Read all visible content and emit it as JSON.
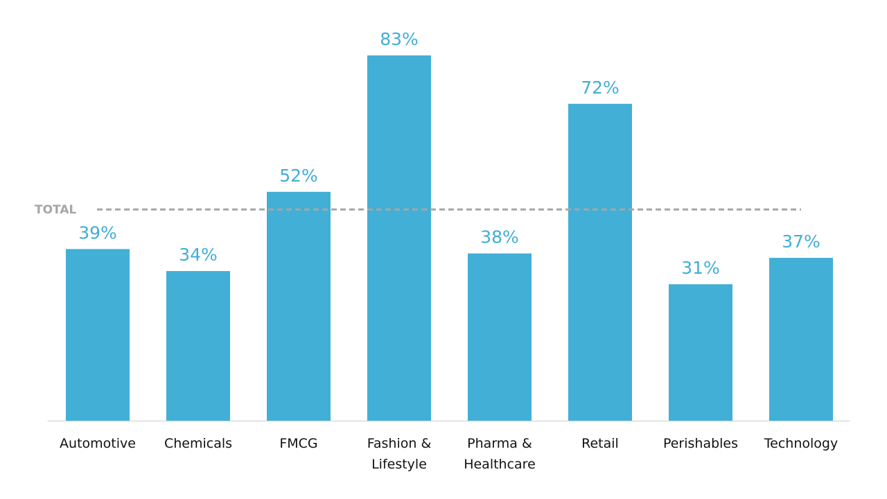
{
  "chart_data": {
    "type": "bar",
    "categories": [
      "Automotive",
      "Chemicals",
      "FMCG",
      "Fashion & Lifestyle",
      "Pharma & Healthcare",
      "Retail",
      "Perishables",
      "Technology"
    ],
    "values": [
      39,
      34,
      52,
      83,
      38,
      72,
      31,
      37
    ],
    "value_labels": [
      "39%",
      "34%",
      "52%",
      "83%",
      "38%",
      "72%",
      "31%",
      "37%"
    ],
    "color": "#42afd6",
    "ylim": [
      0,
      90
    ],
    "reference_line": {
      "label": "TOTAL",
      "value": 48,
      "color": "#a6a6a6"
    }
  }
}
